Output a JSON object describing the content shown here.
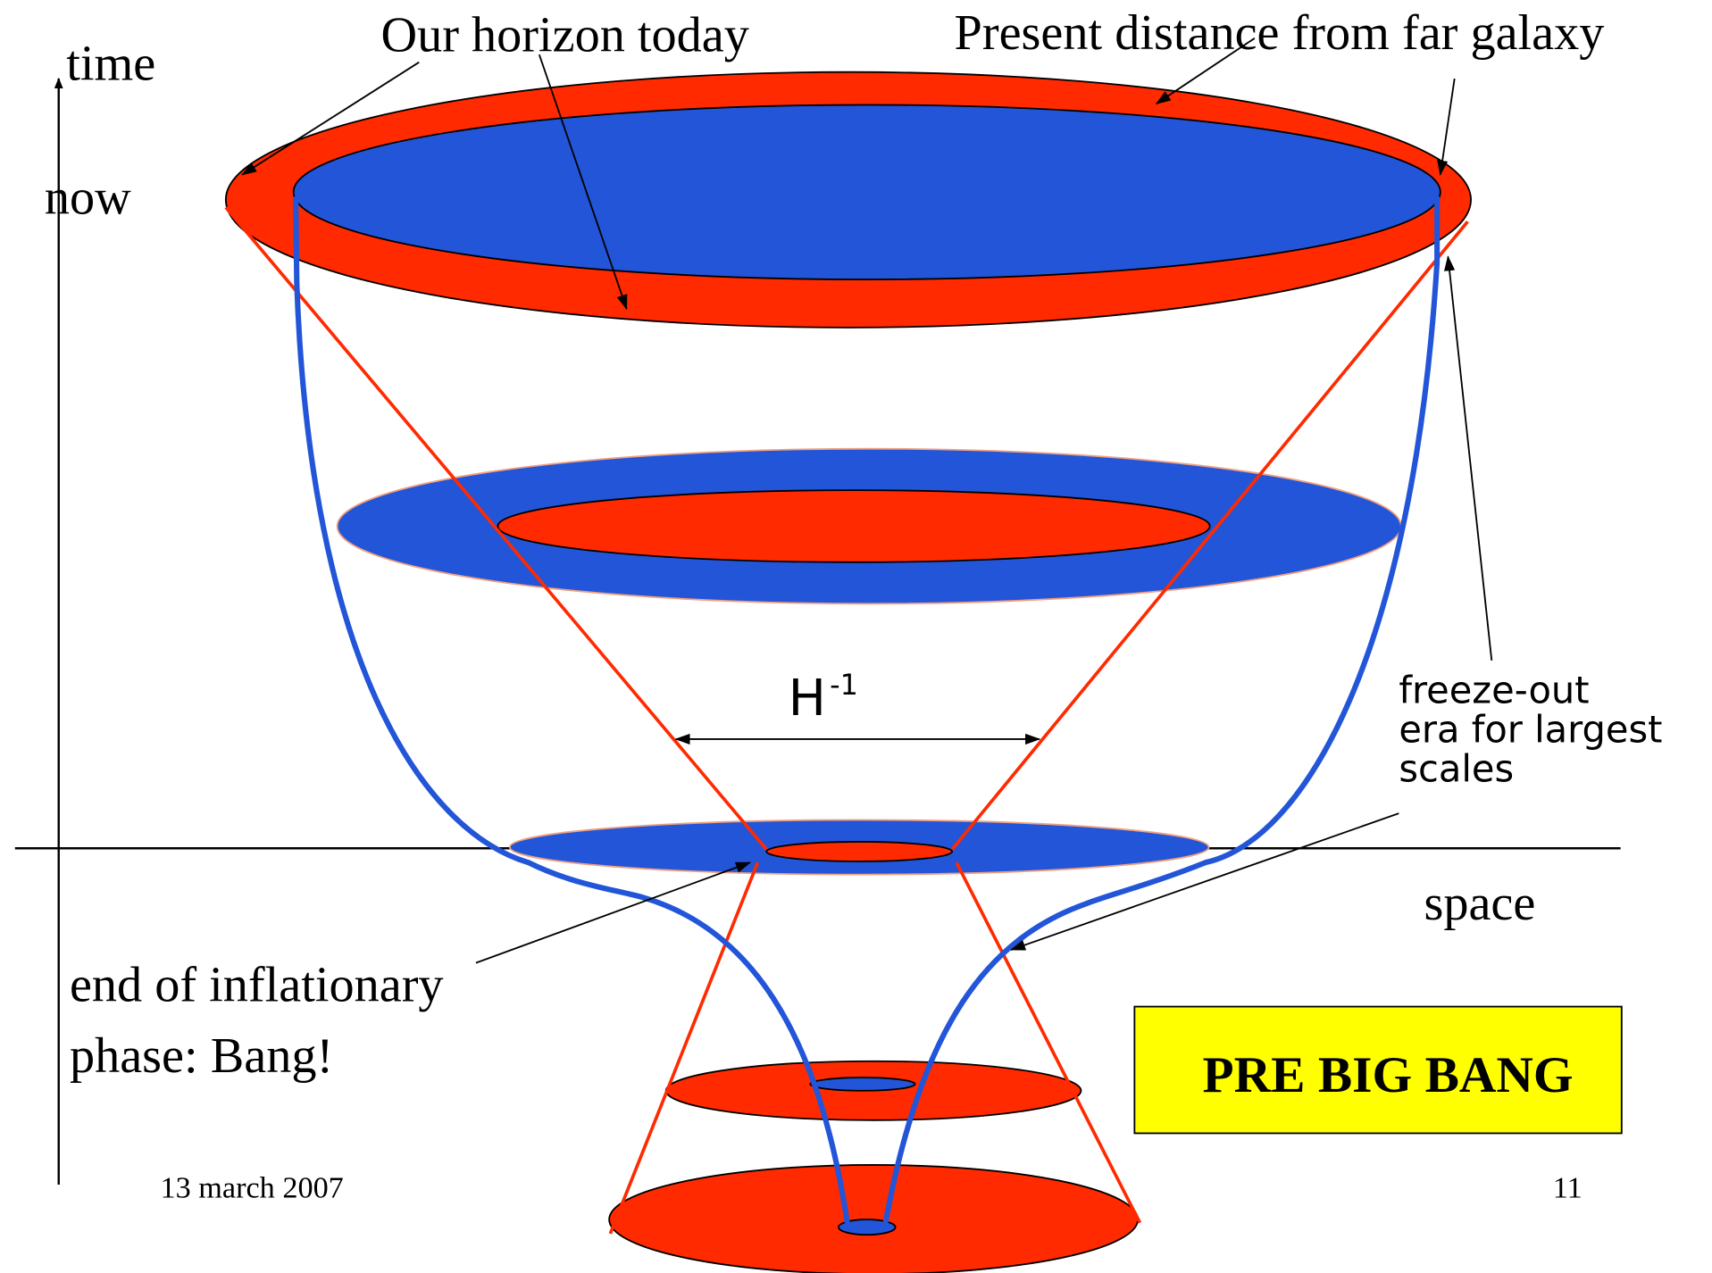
{
  "labels": {
    "horizon": "Our horizon today",
    "distance": "Present distance from far galaxy",
    "time": "time",
    "now": "now",
    "hubble": "H",
    "hubble_exp": "-1",
    "freeze": [
      "freeze-out",
      "era for largest",
      "scales"
    ],
    "space": "space",
    "inflation": [
      "end of inflationary",
      "phase: Bang!"
    ],
    "pre_big_bang": "PRE BIG BANG"
  },
  "footer": {
    "date": "13 march 2007",
    "page": "11"
  }
}
